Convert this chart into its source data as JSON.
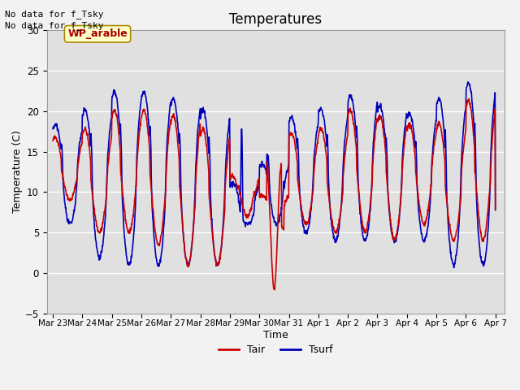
{
  "title": "Temperatures",
  "xlabel": "Time",
  "ylabel": "Temperature (C)",
  "note_line1": "No data for f_Tsky",
  "note_line2": "No data for f_Tsky",
  "wp_label": "WP_arable",
  "legend_tair": "Tair",
  "legend_tsurf": "Tsurf",
  "ylim": [
    -5,
    30
  ],
  "yticks": [
    -5,
    0,
    5,
    10,
    15,
    20,
    25,
    30
  ],
  "bg_color": "#e0e0e0",
  "grid_color": "#ffffff",
  "tair_color": "#cc0000",
  "tsurf_color": "#0000bb",
  "xtick_labels": [
    "Mar 23",
    "Mar 24",
    "Mar 25",
    "Mar 26",
    "Mar 27",
    "Mar 28",
    "Mar 29",
    "Mar 30",
    "Mar 31",
    "Apr 1",
    "Apr 2",
    "Apr 3",
    "Apr 4",
    "Apr 5",
    "Apr 6",
    "Apr 7"
  ],
  "xtick_positions": [
    0,
    1,
    2,
    3,
    4,
    5,
    6,
    7,
    8,
    9,
    10,
    11,
    12,
    13,
    14,
    15
  ],
  "fig_bg": "#f2f2f2"
}
